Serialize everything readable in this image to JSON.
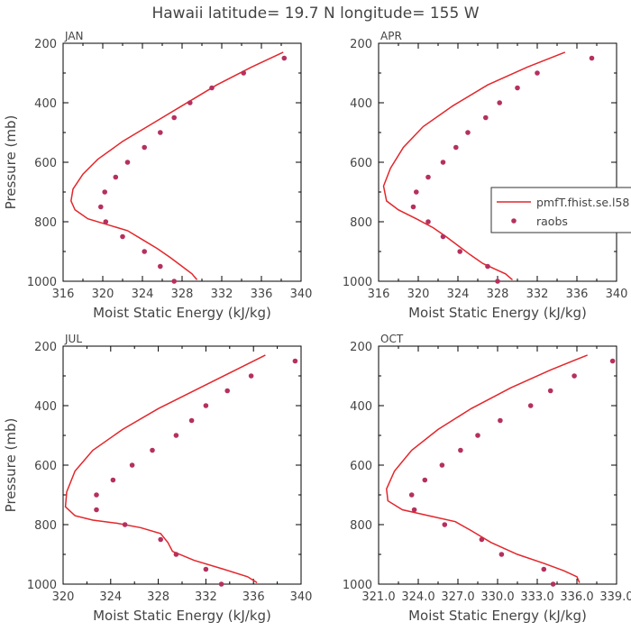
{
  "figure": {
    "title": "Hawaii  latitude= 19.7 N longitude= 155 W"
  },
  "chart_data": [
    {
      "type": "line",
      "panel": "JAN",
      "title": "JAN",
      "xlabel": "Moist Static Energy (kJ/kg)",
      "ylabel": "Pressure (mb)",
      "xlim": [
        316,
        340
      ],
      "ylim": [
        1000,
        200
      ],
      "xticks": [
        "316",
        "320",
        "324",
        "328",
        "332",
        "336",
        "340"
      ],
      "yticks": [
        "200",
        "400",
        "600",
        "800",
        "1000"
      ],
      "model": {
        "name": "pmfT.fhist.se.l58",
        "x": [
          338.2,
          335.0,
          331.5,
          328.0,
          325.0,
          322.0,
          319.5,
          318.0,
          317.0,
          316.8,
          317.2,
          318.5,
          320.5,
          322.5,
          324.0,
          325.5,
          326.8,
          328.0,
          329.0,
          329.5
        ],
        "p": [
          230,
          280,
          340,
          410,
          470,
          530,
          590,
          640,
          690,
          730,
          760,
          790,
          810,
          830,
          860,
          890,
          920,
          950,
          975,
          995
        ]
      },
      "obs": {
        "name": "raobs",
        "x": [
          338.3,
          334.2,
          331.0,
          328.8,
          327.2,
          325.8,
          324.2,
          322.5,
          321.3,
          320.2,
          319.8,
          320.3,
          322.0,
          324.2,
          325.8,
          327.2
        ],
        "p": [
          250,
          300,
          350,
          400,
          450,
          500,
          550,
          600,
          650,
          700,
          750,
          800,
          850,
          900,
          950,
          1000
        ]
      }
    },
    {
      "type": "line",
      "panel": "APR",
      "title": "APR",
      "xlabel": "Moist Static Energy (kJ/kg)",
      "ylabel": "",
      "xlim": [
        316,
        340
      ],
      "ylim": [
        1000,
        200
      ],
      "xticks": [
        "316",
        "320",
        "324",
        "328",
        "332",
        "336",
        "340"
      ],
      "yticks": [
        "200",
        "400",
        "600",
        "800",
        "1000"
      ],
      "legend": {
        "placement": "right",
        "entries": [
          "pmfT.fhist.se.l58",
          "raobs"
        ]
      },
      "model": {
        "name": "pmfT.fhist.se.l58",
        "x": [
          334.8,
          331.0,
          327.0,
          323.5,
          320.5,
          318.5,
          317.2,
          316.5,
          316.8,
          318.0,
          319.8,
          321.5,
          322.8,
          324.0,
          325.2,
          326.5,
          327.8,
          328.8,
          329.5
        ],
        "p": [
          230,
          280,
          340,
          410,
          480,
          550,
          620,
          680,
          730,
          760,
          790,
          820,
          850,
          880,
          910,
          940,
          960,
          975,
          995
        ]
      },
      "obs": {
        "name": "raobs",
        "x": [
          337.5,
          332.0,
          330.0,
          328.2,
          326.8,
          325.0,
          323.8,
          322.5,
          321.0,
          319.8,
          319.5,
          321.0,
          322.5,
          324.2,
          327.0,
          328.0
        ],
        "p": [
          250,
          300,
          350,
          400,
          450,
          500,
          550,
          600,
          650,
          700,
          750,
          800,
          850,
          900,
          950,
          1000
        ]
      }
    },
    {
      "type": "line",
      "panel": "JUL",
      "title": "JUL",
      "xlabel": "Moist Static Energy (kJ/kg)",
      "ylabel": "Pressure (mb)",
      "xlim": [
        320,
        340
      ],
      "ylim": [
        1000,
        200
      ],
      "xticks": [
        "320",
        "324",
        "328",
        "332",
        "336",
        "340"
      ],
      "yticks": [
        "200",
        "400",
        "600",
        "800",
        "1000"
      ],
      "model": {
        "name": "pmfT.fhist.se.l58",
        "x": [
          337.0,
          334.5,
          331.5,
          328.0,
          325.0,
          322.5,
          321.0,
          320.3,
          320.2,
          321.0,
          322.5,
          324.5,
          326.5,
          328.2,
          328.8,
          329.2,
          331.0,
          333.5,
          335.5,
          336.3
        ],
        "p": [
          230,
          280,
          340,
          410,
          480,
          550,
          620,
          690,
          740,
          770,
          785,
          795,
          810,
          830,
          860,
          890,
          920,
          950,
          975,
          995
        ]
      },
      "obs": {
        "name": "raobs",
        "x": [
          339.5,
          335.8,
          333.8,
          332.0,
          330.8,
          329.5,
          327.5,
          325.8,
          324.2,
          322.8,
          322.8,
          325.2,
          328.2,
          329.5,
          332.0,
          333.3
        ],
        "p": [
          250,
          300,
          350,
          400,
          450,
          500,
          550,
          600,
          650,
          700,
          750,
          800,
          850,
          900,
          950,
          1000
        ]
      }
    },
    {
      "type": "line",
      "panel": "OCT",
      "title": "OCT",
      "xlabel": "Moist Static Energy (kJ/kg)",
      "ylabel": "",
      "xlim": [
        321.0,
        339.0
      ],
      "ylim": [
        1000,
        200
      ],
      "xticks": [
        "321.0",
        "324.0",
        "327.0",
        "330.0",
        "333.0",
        "336.0",
        "339.0"
      ],
      "yticks": [
        "200",
        "400",
        "600",
        "800",
        "1000"
      ],
      "model": {
        "name": "pmfT.fhist.se.l58",
        "x": [
          336.8,
          334.0,
          331.0,
          328.0,
          325.5,
          323.5,
          322.2,
          321.6,
          321.7,
          322.8,
          324.8,
          326.8,
          328.0,
          329.5,
          331.5,
          333.5,
          335.0,
          336.0,
          336.2
        ],
        "p": [
          230,
          280,
          340,
          410,
          480,
          550,
          620,
          680,
          720,
          750,
          770,
          790,
          820,
          860,
          900,
          930,
          955,
          975,
          995
        ]
      },
      "obs": {
        "name": "raobs",
        "x": [
          338.7,
          335.8,
          334.0,
          332.5,
          330.2,
          328.5,
          327.2,
          325.8,
          324.5,
          323.5,
          323.7,
          326.0,
          328.8,
          330.3,
          333.5,
          334.2
        ],
        "p": [
          250,
          300,
          350,
          400,
          450,
          500,
          550,
          600,
          650,
          700,
          750,
          800,
          850,
          900,
          950,
          1000
        ]
      }
    }
  ]
}
